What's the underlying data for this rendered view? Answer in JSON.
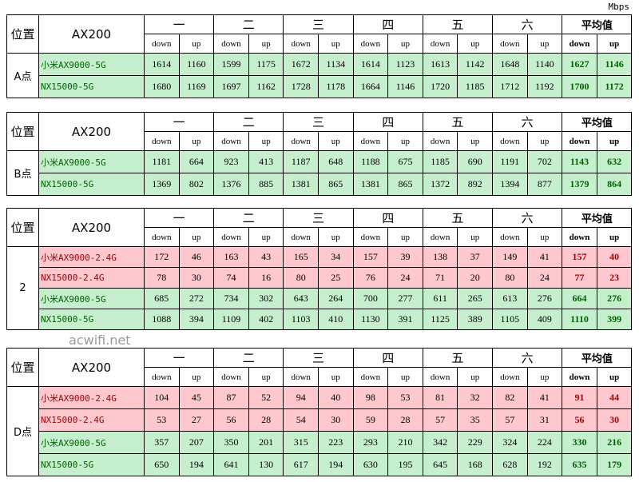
{
  "unit": "Mbps",
  "watermark": "acwifi.net",
  "tables": [
    {
      "position_header": "位置",
      "client": "AX200",
      "groups": [
        "一",
        "二",
        "三",
        "四",
        "五",
        "六",
        "平均值"
      ],
      "subheaders": [
        "down",
        "up"
      ],
      "position": "A点",
      "rows": [
        {
          "name": "小米AX9000-5G",
          "color": "#c6efce",
          "text_color": "#006100",
          "values": [
            1614,
            1160,
            1599,
            1175,
            1672,
            1134,
            1614,
            1123,
            1613,
            1142,
            1648,
            1140,
            1627,
            1146
          ]
        },
        {
          "name": "NX15000-5G",
          "color": "#c6efce",
          "text_color": "#006100",
          "values": [
            1680,
            1169,
            1697,
            1162,
            1728,
            1178,
            1664,
            1146,
            1720,
            1185,
            1712,
            1192,
            1700,
            1172
          ]
        }
      ]
    },
    {
      "position_header": "位置",
      "client": "AX200",
      "groups": [
        "一",
        "二",
        "三",
        "四",
        "五",
        "六",
        "平均值"
      ],
      "subheaders": [
        "down",
        "up"
      ],
      "position": "B点",
      "rows": [
        {
          "name": "小米AX9000-5G",
          "color": "#c6efce",
          "text_color": "#006100",
          "values": [
            1181,
            664,
            923,
            413,
            1187,
            648,
            1188,
            675,
            1185,
            690,
            1191,
            702,
            1143,
            632
          ]
        },
        {
          "name": "NX15000-5G",
          "color": "#c6efce",
          "text_color": "#006100",
          "values": [
            1369,
            802,
            1376,
            885,
            1381,
            865,
            1381,
            865,
            1372,
            892,
            1394,
            877,
            1379,
            864
          ]
        }
      ]
    },
    {
      "position_header": "位置",
      "client": "AX200",
      "groups": [
        "一",
        "二",
        "三",
        "四",
        "五",
        "六",
        "平均值"
      ],
      "subheaders": [
        "down",
        "up"
      ],
      "position": "2",
      "rows": [
        {
          "name": "小米AX9000-2.4G",
          "color": "#ffc7ce",
          "text_color": "#9c0006",
          "values": [
            172,
            46,
            163,
            43,
            165,
            34,
            157,
            39,
            138,
            37,
            149,
            41,
            157,
            40
          ]
        },
        {
          "name": "NX15000-2.4G",
          "color": "#ffc7ce",
          "text_color": "#9c0006",
          "values": [
            78,
            30,
            74,
            16,
            80,
            25,
            76,
            24,
            71,
            20,
            80,
            24,
            77,
            23
          ]
        },
        {
          "name": "小米AX9000-5G",
          "color": "#c6efce",
          "text_color": "#006100",
          "values": [
            685,
            272,
            734,
            302,
            643,
            264,
            700,
            277,
            611,
            265,
            613,
            276,
            664,
            276
          ]
        },
        {
          "name": "NX15000-5G",
          "color": "#c6efce",
          "text_color": "#006100",
          "values": [
            1088,
            394,
            1109,
            402,
            1103,
            410,
            1130,
            391,
            1125,
            389,
            1105,
            409,
            1110,
            399
          ]
        }
      ]
    },
    {
      "position_header": "位置",
      "client": "AX200",
      "groups": [
        "一",
        "二",
        "三",
        "四",
        "五",
        "六",
        "平均值"
      ],
      "subheaders": [
        "down",
        "up"
      ],
      "position": "D点",
      "rows": [
        {
          "name": "小米AX9000-2.4G",
          "color": "#ffc7ce",
          "text_color": "#9c0006",
          "values": [
            104,
            45,
            87,
            52,
            94,
            40,
            98,
            53,
            81,
            32,
            82,
            41,
            91,
            44
          ]
        },
        {
          "name": "NX15000-2.4G",
          "color": "#ffc7ce",
          "text_color": "#9c0006",
          "values": [
            53,
            27,
            56,
            28,
            54,
            30,
            59,
            28,
            57,
            35,
            57,
            31,
            56,
            30
          ]
        },
        {
          "name": "小米AX9000-5G",
          "color": "#c6efce",
          "text_color": "#006100",
          "values": [
            357,
            207,
            350,
            201,
            315,
            223,
            293,
            210,
            342,
            229,
            324,
            224,
            330,
            216
          ]
        },
        {
          "name": "NX15000-5G",
          "color": "#c6efce",
          "text_color": "#006100",
          "values": [
            650,
            194,
            641,
            130,
            617,
            194,
            630,
            195,
            645,
            168,
            628,
            192,
            635,
            179
          ]
        }
      ]
    }
  ]
}
